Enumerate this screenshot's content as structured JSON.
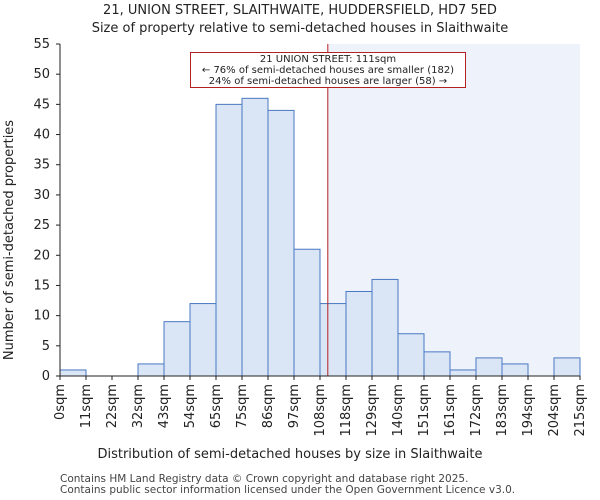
{
  "title_line1": "21, UNION STREET, SLAITHWAITE, HUDDERSFIELD, HD7 5ED",
  "title_line2": "Size of property relative to semi-detached houses in Slaithwaite",
  "footer_line1": "Contains HM Land Registry data © Crown copyright and database right 2025.",
  "footer_line2": "Contains public sector information licensed under the Open Government Licence v3.0.",
  "annotation": {
    "line1": "21 UNION STREET: 111sqm",
    "line2": "← 76% of semi-detached houses are smaller (182)",
    "line3": "24% of semi-detached houses are larger (58) →"
  },
  "colors": {
    "bar_fill": "#dae5f5",
    "bar_edge": "#4a78c2",
    "highlight_fill": "#eef2fb",
    "marker": "#b22222"
  },
  "chart_data": {
    "type": "bar",
    "title": "21, UNION STREET, SLAITHWAITE, HUDDERSFIELD, HD7 5ED",
    "subtitle": "Size of property relative to semi-detached houses in Slaithwaite",
    "xlabel": "Distribution of semi-detached houses by size in Slaithwaite",
    "ylabel": "Number of semi-detached properties",
    "bin_edges": [
      "0sqm",
      "11sqm",
      "22sqm",
      "32sqm",
      "43sqm",
      "54sqm",
      "65sqm",
      "75sqm",
      "86sqm",
      "97sqm",
      "108sqm",
      "118sqm",
      "129sqm",
      "140sqm",
      "151sqm",
      "161sqm",
      "172sqm",
      "183sqm",
      "194sqm",
      "204sqm",
      "215sqm"
    ],
    "values": [
      1,
      0,
      0,
      2,
      9,
      12,
      45,
      46,
      44,
      21,
      12,
      14,
      16,
      7,
      4,
      1,
      3,
      2,
      0,
      3
    ],
    "ylim": [
      0,
      55
    ],
    "yticks": [
      0,
      5,
      10,
      15,
      20,
      25,
      30,
      35,
      40,
      45,
      50,
      55
    ],
    "marker_value": 111,
    "marker_bin_position": 10.3,
    "grid": false
  }
}
